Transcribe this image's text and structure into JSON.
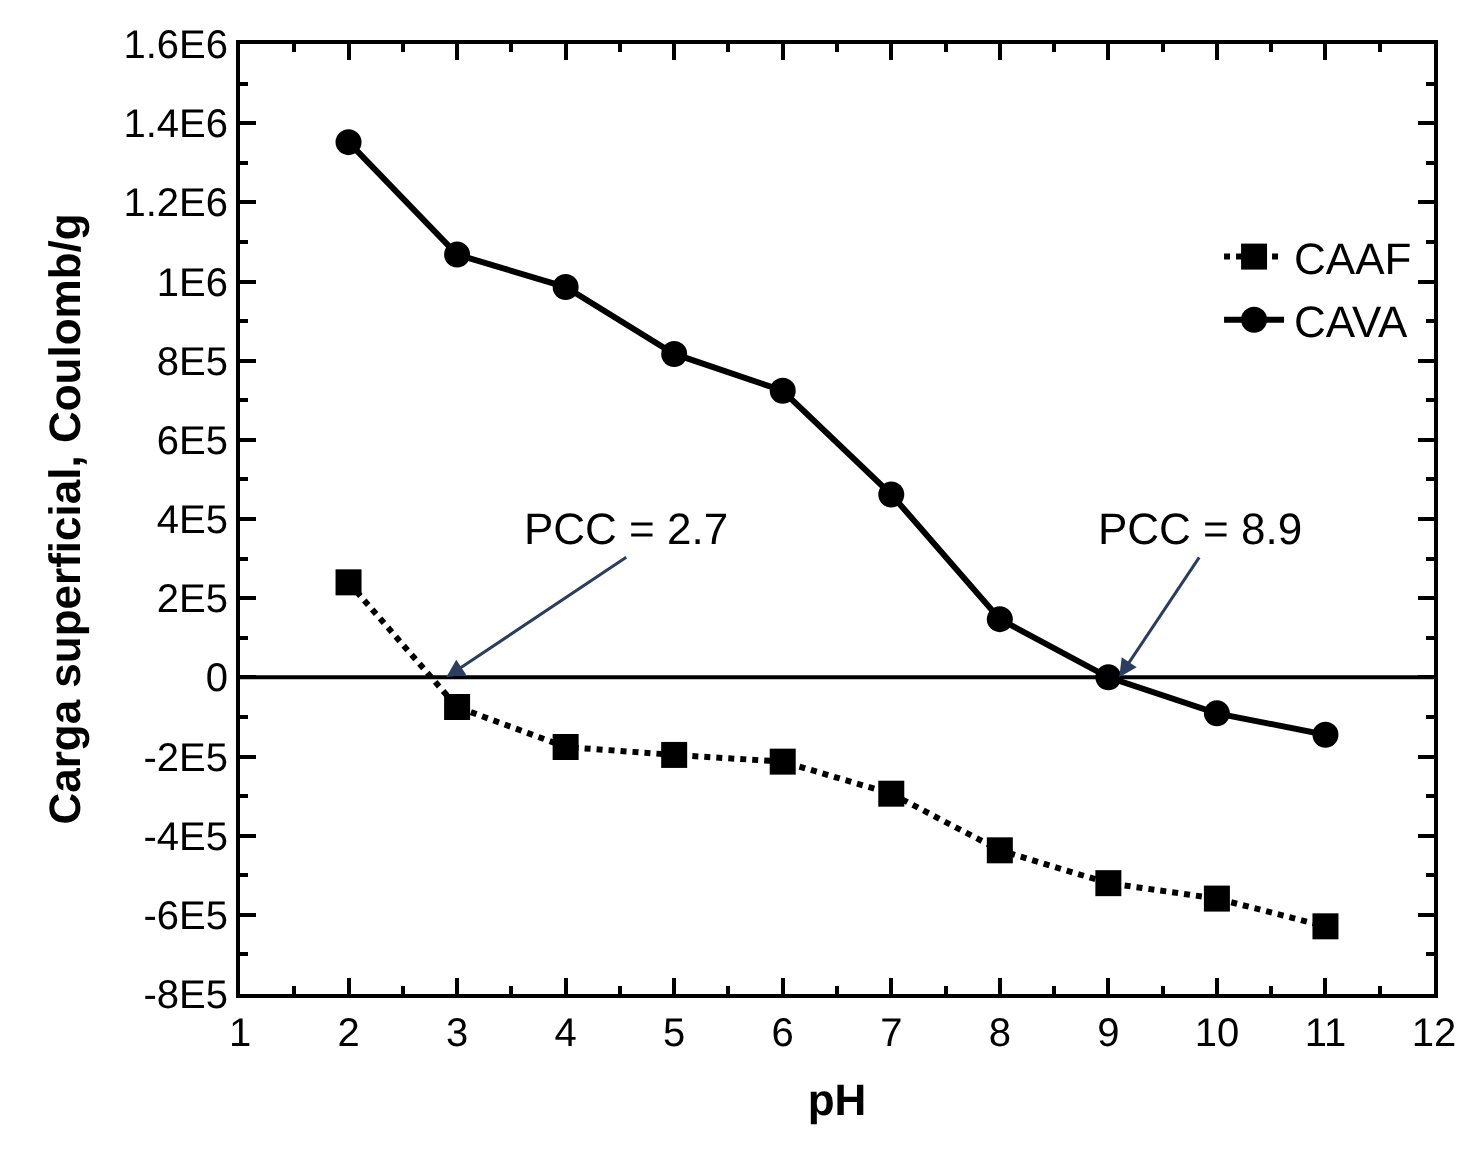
{
  "chart_data": {
    "type": "line",
    "xlabel": "pH",
    "ylabel": "Carga superficial, Coulomb/g",
    "x": [
      2,
      3,
      4,
      5,
      6,
      7,
      8,
      9,
      10,
      11
    ],
    "series": [
      {
        "name": "CAAF",
        "color": "#000000",
        "marker": "square",
        "line_style": "dotted",
        "values": [
          240000,
          -75000,
          -176000,
          -196000,
          -213000,
          -294000,
          -437000,
          -520000,
          -559000,
          -629000
        ]
      },
      {
        "name": "CAVA",
        "color": "#000000",
        "marker": "circle",
        "line_style": "solid",
        "values": [
          1352000,
          1068000,
          986000,
          817000,
          724000,
          462000,
          147000,
          0,
          -91000,
          -145000
        ]
      }
    ],
    "xlim": [
      1,
      12
    ],
    "xticks": [
      1,
      2,
      3,
      4,
      5,
      6,
      7,
      8,
      9,
      10,
      11,
      12
    ],
    "ylim": [
      -800000,
      1600000
    ],
    "yticks": [
      {
        "value": -800000,
        "label": "-8E5"
      },
      {
        "value": -600000,
        "label": "-6E5"
      },
      {
        "value": -400000,
        "label": "-4E5"
      },
      {
        "value": -200000,
        "label": "-2E5"
      },
      {
        "value": 0,
        "label": "0"
      },
      {
        "value": 200000,
        "label": "2E5"
      },
      {
        "value": 400000,
        "label": "4E5"
      },
      {
        "value": 600000,
        "label": "6E5"
      },
      {
        "value": 800000,
        "label": "8E5"
      },
      {
        "value": 1000000,
        "label": "1E6"
      },
      {
        "value": 1200000,
        "label": "1.2E6"
      },
      {
        "value": 1400000,
        "label": "1.4E6"
      },
      {
        "value": 1600000,
        "label": "1.6E6"
      }
    ],
    "ref_lines": [
      {
        "axis": "y",
        "value": 0,
        "color": "#000000",
        "line_style": "solid"
      }
    ],
    "annotations": [
      {
        "text": "PCC = 2.7",
        "x": 2.9,
        "y": 0
      },
      {
        "text": "PCC = 8.9",
        "x": 9.1,
        "y": 0
      }
    ],
    "legend": "top right",
    "grid": false
  }
}
